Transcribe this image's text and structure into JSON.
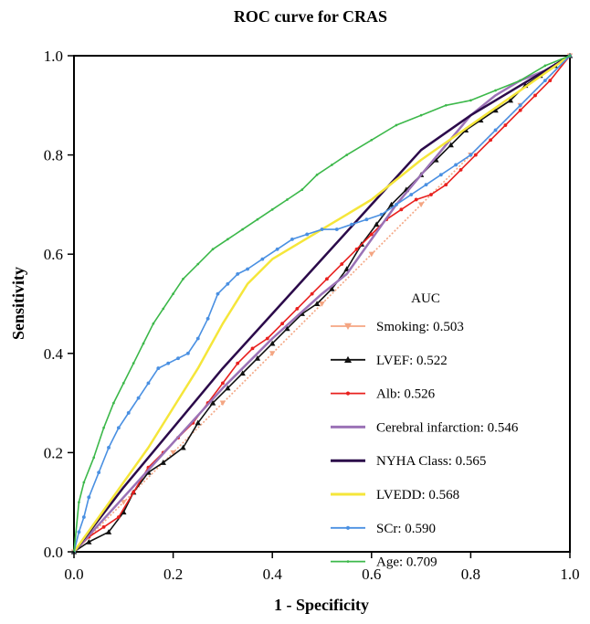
{
  "chart_data": {
    "type": "line",
    "title": "ROC curve for CRAS",
    "xlabel": "1 - Specificity",
    "ylabel": "Sensitivity",
    "xlim": [
      0,
      1
    ],
    "ylim": [
      0,
      1
    ],
    "x_ticks": [
      "0.0",
      "0.2",
      "0.4",
      "0.6",
      "0.8",
      "1.0"
    ],
    "y_ticks": [
      "0.0",
      "0.2",
      "0.4",
      "0.6",
      "0.8",
      "1.0"
    ],
    "grid": false,
    "legend": {
      "title": "AUC",
      "placement": "bottom-right"
    },
    "series": [
      {
        "name": "Smoking: 0.503",
        "color": "#f4a582",
        "marker": "triangle-down",
        "x": [
          0,
          0.1,
          0.2,
          0.3,
          0.4,
          0.5,
          0.6,
          0.7,
          0.8,
          0.9,
          1
        ],
        "y": [
          0,
          0.1,
          0.2,
          0.3,
          0.4,
          0.5,
          0.6,
          0.7,
          0.8,
          0.9,
          1
        ]
      },
      {
        "name": "LVEF: 0.522",
        "color": "#111111",
        "marker": "triangle-up",
        "x": [
          0,
          0.03,
          0.07,
          0.1,
          0.12,
          0.15,
          0.18,
          0.22,
          0.25,
          0.28,
          0.31,
          0.34,
          0.37,
          0.4,
          0.43,
          0.46,
          0.49,
          0.52,
          0.55,
          0.58,
          0.61,
          0.64,
          0.67,
          0.7,
          0.73,
          0.76,
          0.79,
          0.82,
          0.85,
          0.88,
          0.91,
          0.94,
          0.97,
          1
        ],
        "y": [
          0,
          0.02,
          0.04,
          0.08,
          0.12,
          0.16,
          0.18,
          0.21,
          0.26,
          0.3,
          0.33,
          0.36,
          0.39,
          0.42,
          0.45,
          0.48,
          0.5,
          0.53,
          0.57,
          0.62,
          0.66,
          0.7,
          0.73,
          0.76,
          0.79,
          0.82,
          0.85,
          0.87,
          0.89,
          0.91,
          0.94,
          0.96,
          0.98,
          1
        ]
      },
      {
        "name": "Alb: 0.526",
        "color": "#e8201e",
        "marker": "circle",
        "x": [
          0,
          0.03,
          0.06,
          0.09,
          0.12,
          0.15,
          0.18,
          0.21,
          0.24,
          0.27,
          0.3,
          0.33,
          0.36,
          0.39,
          0.42,
          0.45,
          0.48,
          0.51,
          0.54,
          0.57,
          0.6,
          0.63,
          0.66,
          0.69,
          0.72,
          0.75,
          0.78,
          0.81,
          0.84,
          0.87,
          0.9,
          0.93,
          0.96,
          1
        ],
        "y": [
          0,
          0.03,
          0.05,
          0.07,
          0.12,
          0.17,
          0.2,
          0.23,
          0.26,
          0.3,
          0.34,
          0.38,
          0.41,
          0.43,
          0.46,
          0.49,
          0.52,
          0.55,
          0.58,
          0.61,
          0.64,
          0.67,
          0.69,
          0.71,
          0.72,
          0.74,
          0.77,
          0.8,
          0.83,
          0.86,
          0.89,
          0.92,
          0.95,
          1
        ]
      },
      {
        "name": "Cerebral infarction: 0.546",
        "color": "#9b72b6",
        "marker": "none",
        "x": [
          0,
          0.1,
          0.2,
          0.3,
          0.4,
          0.5,
          0.55,
          0.6,
          0.65,
          0.7,
          0.75,
          0.8,
          0.85,
          0.9,
          0.95,
          1
        ],
        "y": [
          0,
          0.11,
          0.22,
          0.33,
          0.43,
          0.52,
          0.56,
          0.63,
          0.7,
          0.76,
          0.82,
          0.88,
          0.92,
          0.95,
          0.97,
          1
        ]
      },
      {
        "name": "NYHA Class: 0.565",
        "color": "#2b0a4a",
        "marker": "none",
        "x": [
          0,
          0.1,
          0.2,
          0.3,
          0.4,
          0.5,
          0.6,
          0.7,
          0.8,
          0.85,
          0.9,
          0.95,
          1
        ],
        "y": [
          0,
          0.13,
          0.25,
          0.37,
          0.48,
          0.59,
          0.7,
          0.81,
          0.88,
          0.91,
          0.94,
          0.97,
          1
        ]
      },
      {
        "name": "LVEDD: 0.568",
        "color": "#f5e63a",
        "marker": "none",
        "x": [
          0,
          0.05,
          0.1,
          0.15,
          0.2,
          0.25,
          0.3,
          0.35,
          0.4,
          0.45,
          0.5,
          0.55,
          0.6,
          0.7,
          0.8,
          0.9,
          1
        ],
        "y": [
          0,
          0.07,
          0.14,
          0.21,
          0.29,
          0.37,
          0.46,
          0.54,
          0.59,
          0.62,
          0.65,
          0.68,
          0.71,
          0.79,
          0.86,
          0.93,
          1
        ]
      },
      {
        "name": "SCr: 0.590",
        "color": "#4a90e2",
        "marker": "circle",
        "x": [
          0,
          0.01,
          0.02,
          0.03,
          0.05,
          0.07,
          0.09,
          0.11,
          0.13,
          0.15,
          0.17,
          0.19,
          0.21,
          0.23,
          0.25,
          0.27,
          0.29,
          0.31,
          0.33,
          0.35,
          0.38,
          0.41,
          0.44,
          0.47,
          0.5,
          0.53,
          0.56,
          0.59,
          0.62,
          0.65,
          0.68,
          0.71,
          0.74,
          0.77,
          0.8,
          0.85,
          0.9,
          0.95,
          1
        ],
        "y": [
          0,
          0.04,
          0.07,
          0.11,
          0.16,
          0.21,
          0.25,
          0.28,
          0.31,
          0.34,
          0.37,
          0.38,
          0.39,
          0.4,
          0.43,
          0.47,
          0.52,
          0.54,
          0.56,
          0.57,
          0.59,
          0.61,
          0.63,
          0.64,
          0.65,
          0.65,
          0.66,
          0.67,
          0.68,
          0.7,
          0.72,
          0.74,
          0.76,
          0.78,
          0.8,
          0.85,
          0.9,
          0.95,
          1
        ]
      },
      {
        "name": "Age: 0.709",
        "color": "#3cb84a",
        "marker": "dot",
        "x": [
          0,
          0.01,
          0.02,
          0.04,
          0.06,
          0.08,
          0.1,
          0.12,
          0.14,
          0.16,
          0.18,
          0.2,
          0.22,
          0.25,
          0.28,
          0.31,
          0.34,
          0.37,
          0.4,
          0.43,
          0.46,
          0.49,
          0.52,
          0.55,
          0.6,
          0.65,
          0.7,
          0.75,
          0.8,
          0.85,
          0.9,
          0.95,
          1
        ],
        "y": [
          0,
          0.1,
          0.14,
          0.19,
          0.25,
          0.3,
          0.34,
          0.38,
          0.42,
          0.46,
          0.49,
          0.52,
          0.55,
          0.58,
          0.61,
          0.63,
          0.65,
          0.67,
          0.69,
          0.71,
          0.73,
          0.76,
          0.78,
          0.8,
          0.83,
          0.86,
          0.88,
          0.9,
          0.91,
          0.93,
          0.95,
          0.98,
          1
        ]
      }
    ]
  }
}
